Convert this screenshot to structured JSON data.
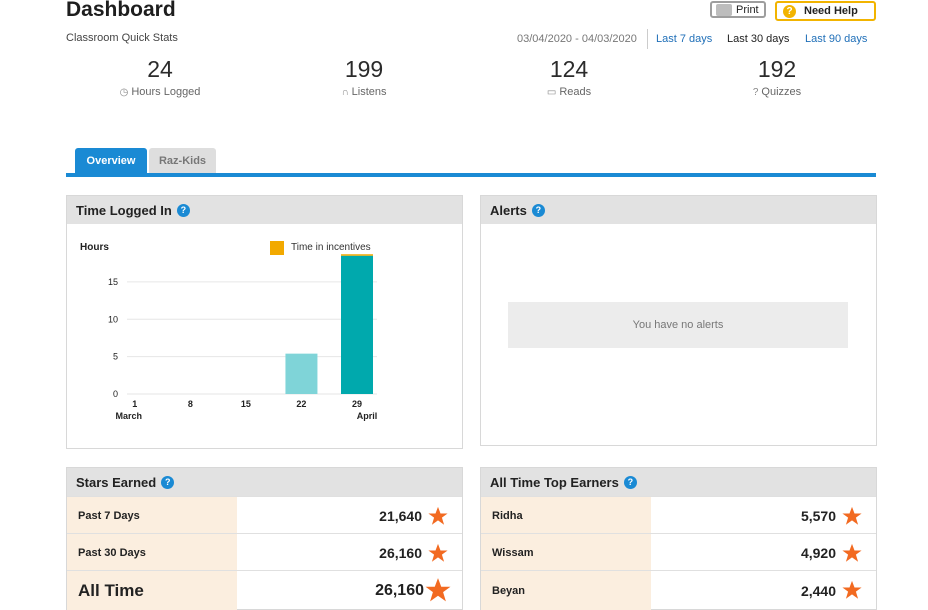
{
  "header": {
    "title": "Dashboard",
    "subtitle": "Classroom Quick Stats",
    "print_label": "Print",
    "help_label": "Need Help",
    "date_range": "03/04/2020 - 04/03/2020",
    "ranges": [
      "Last 7 days",
      "Last 30 days",
      "Last 90 days"
    ],
    "selected_range": "Last 30 days"
  },
  "stats": [
    {
      "value": "24",
      "label": "Hours Logged",
      "icon": "clock-icon"
    },
    {
      "value": "199",
      "label": "Listens",
      "icon": "headphones-icon"
    },
    {
      "value": "124",
      "label": "Reads",
      "icon": "book-icon"
    },
    {
      "value": "192",
      "label": "Quizzes",
      "icon": "question-icon"
    }
  ],
  "tabs": [
    "Overview",
    "Raz-Kids"
  ],
  "active_tab": "Overview",
  "time_panel": {
    "title": "Time Logged In",
    "legend": "Time in incentives"
  },
  "alerts_panel": {
    "title": "Alerts",
    "empty_message": "You have no alerts"
  },
  "stars_panel": {
    "title": "Stars Earned",
    "rows": [
      {
        "label": "Past 7 Days",
        "value": "21,640"
      },
      {
        "label": "Past 30 Days",
        "value": "26,160"
      },
      {
        "label": "All Time",
        "value": "26,160"
      }
    ]
  },
  "top_panel": {
    "title": "All Time Top Earners",
    "rows": [
      {
        "label": "Ridha",
        "value": "5,570"
      },
      {
        "label": "Wissam",
        "value": "4,920"
      },
      {
        "label": "Beyan",
        "value": "2,440"
      }
    ]
  },
  "colors": {
    "accent": "#1a8ad4",
    "bar_light": "#7fd4d8",
    "bar_dark": "#00a9ad",
    "incentive": "#f2a900",
    "star": "#f26a21",
    "row_label_bg": "#fbeedf"
  },
  "chart_data": {
    "type": "bar",
    "ylabel": "Hours",
    "yticks": [
      0,
      5,
      10,
      15
    ],
    "ylim": [
      0,
      19
    ],
    "x_ticks": [
      "1",
      "8",
      "15",
      "22",
      "29"
    ],
    "x_sublabels": {
      "1": "March",
      "29": "April"
    },
    "series": [
      {
        "name": "",
        "values": [
          0,
          0,
          0,
          5.4,
          18.5
        ],
        "color": "#7fd4d8"
      },
      {
        "name": "Time in incentives",
        "values": [
          0,
          0,
          0,
          0,
          0.2
        ],
        "color": "#f2a900"
      }
    ],
    "grid": true,
    "legend_position": "top-right"
  }
}
